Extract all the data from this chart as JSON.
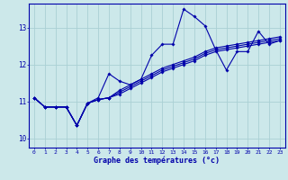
{
  "xlabel": "Graphe des températures (°c)",
  "background_color": "#cce8ea",
  "grid_color": "#aad0d4",
  "line_color": "#0000aa",
  "markersize": 1.8,
  "linewidth": 0.8,
  "xlim": [
    -0.5,
    23.5
  ],
  "ylim": [
    9.75,
    13.65
  ],
  "yticks": [
    10,
    11,
    12,
    13
  ],
  "xticks": [
    0,
    1,
    2,
    3,
    4,
    5,
    6,
    7,
    8,
    9,
    10,
    11,
    12,
    13,
    14,
    15,
    16,
    17,
    18,
    19,
    20,
    21,
    22,
    23
  ],
  "series_main": [
    11.1,
    10.85,
    10.85,
    10.85,
    10.35,
    10.95,
    11.1,
    11.75,
    11.55,
    11.45,
    11.6,
    12.25,
    12.55,
    12.55,
    13.5,
    13.3,
    13.05,
    12.4,
    11.85,
    12.35,
    12.35,
    12.9,
    12.55,
    12.65
  ],
  "series_reg1": [
    11.1,
    10.85,
    10.85,
    10.85,
    10.35,
    10.95,
    11.05,
    11.1,
    11.2,
    11.35,
    11.5,
    11.65,
    11.8,
    11.9,
    12.0,
    12.1,
    12.25,
    12.35,
    12.4,
    12.45,
    12.5,
    12.55,
    12.6,
    12.65
  ],
  "series_reg2": [
    11.1,
    10.85,
    10.85,
    10.85,
    10.35,
    10.95,
    11.05,
    11.1,
    11.25,
    11.4,
    11.55,
    11.7,
    11.85,
    11.95,
    12.05,
    12.15,
    12.3,
    12.4,
    12.45,
    12.5,
    12.55,
    12.6,
    12.65,
    12.7
  ],
  "series_reg3": [
    11.1,
    10.85,
    10.85,
    10.85,
    10.35,
    10.95,
    11.05,
    11.1,
    11.3,
    11.45,
    11.6,
    11.75,
    11.9,
    12.0,
    12.1,
    12.2,
    12.35,
    12.45,
    12.5,
    12.55,
    12.6,
    12.65,
    12.7,
    12.75
  ]
}
